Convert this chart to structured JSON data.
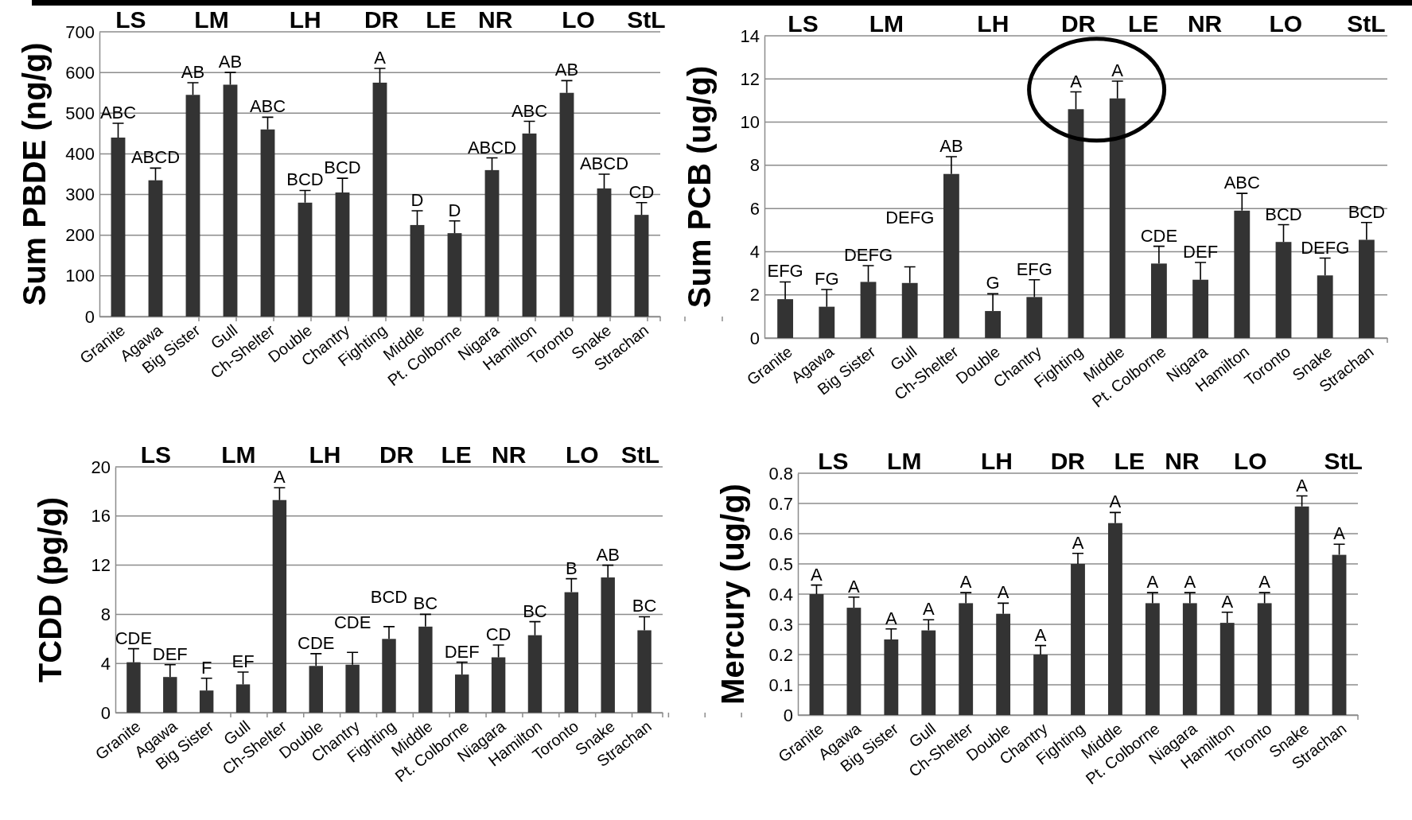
{
  "chart_data": [
    {
      "type": "bar",
      "ylabel": "Sum PBDE (ng/g)",
      "categories": [
        "Granite",
        "Agawa",
        "Big Sister",
        "Gull",
        "Ch-Shelter",
        "Double",
        "Chantry",
        "Fighting",
        "Middle",
        "Pt. Colborne",
        "Nigara",
        "Hamilton",
        "Toronto",
        "Snake",
        "Strachan"
      ],
      "values": [
        440,
        335,
        545,
        570,
        460,
        280,
        305,
        575,
        225,
        205,
        360,
        450,
        550,
        315,
        250
      ],
      "errors": [
        [
          440,
          475
        ],
        [
          335,
          365
        ],
        [
          545,
          575
        ],
        [
          570,
          600
        ],
        [
          460,
          490
        ],
        [
          280,
          310
        ],
        [
          305,
          340
        ],
        [
          575,
          610
        ],
        [
          225,
          260
        ],
        [
          205,
          235
        ],
        [
          360,
          390
        ],
        [
          450,
          480
        ],
        [
          550,
          580
        ],
        [
          315,
          350
        ],
        [
          250,
          280
        ]
      ],
      "color": "#333333",
      "ylim": [
        0,
        700
      ],
      "yticks": [
        0,
        100,
        200,
        300,
        400,
        500,
        600,
        700
      ],
      "grid": "y",
      "annotations": [
        {
          "text": "ABC",
          "x": "Granite",
          "y": 475
        },
        {
          "text": "ABCD",
          "x": "Agawa",
          "y": 365
        },
        {
          "text": "AB",
          "x": "Big Sister",
          "y": 575
        },
        {
          "text": "AB",
          "x": "Gull",
          "y": 600
        },
        {
          "text": "ABC",
          "x": "Ch-Shelter",
          "y": 490
        },
        {
          "text": "BCD",
          "x": "Double",
          "y": 310
        },
        {
          "text": "BCD",
          "x": "Chantry",
          "y": 340
        },
        {
          "text": "A",
          "x": "Fighting",
          "y": 610
        },
        {
          "text": "D",
          "x": "Middle",
          "y": 260
        },
        {
          "text": "D",
          "x": "Pt. Colborne",
          "y": 235
        },
        {
          "text": "ABCD",
          "x": "Nigara",
          "y": 390
        },
        {
          "text": "ABC",
          "x": "Hamilton",
          "y": 480
        },
        {
          "text": "AB",
          "x": "Toronto",
          "y": 580
        },
        {
          "text": "ABCD",
          "x": "Snake",
          "y": 350
        },
        {
          "text": "CD",
          "x": "Strachan",
          "y": 280
        },
        "LS",
        "LM",
        "LH",
        "DR",
        "LE",
        "NR",
        "LO",
        "StL"
      ]
    },
    {
      "type": "bar",
      "ylabel": "Sum PCB (ug/g)",
      "categories": [
        "Granite",
        "Agawa",
        "Big Sister",
        "Gull",
        "Ch-Shelter",
        "Double",
        "Chantry",
        "Fighting",
        "Middle",
        "Pt. Colborne",
        "Nigara",
        "Hamilton",
        "Toronto",
        "Snake",
        "Strachan"
      ],
      "values": [
        1.8,
        1.45,
        2.6,
        2.55,
        7.6,
        1.25,
        1.9,
        10.6,
        11.1,
        3.45,
        2.7,
        5.9,
        4.45,
        2.9,
        4.55
      ],
      "errors": [
        [
          1.8,
          2.6
        ],
        [
          1.45,
          2.25
        ],
        [
          2.6,
          3.35
        ],
        [
          2.55,
          3.3
        ],
        [
          7.6,
          8.4
        ],
        [
          1.25,
          2.05
        ],
        [
          1.9,
          2.7
        ],
        [
          10.6,
          11.4
        ],
        [
          11.1,
          11.9
        ],
        [
          3.45,
          4.25
        ],
        [
          2.7,
          3.5
        ],
        [
          5.9,
          6.7
        ],
        [
          4.45,
          5.25
        ],
        [
          2.9,
          3.7
        ],
        [
          4.55,
          5.35
        ]
      ],
      "color": "#333333",
      "ylim": [
        0,
        14
      ],
      "yticks": [
        0,
        2,
        4,
        6,
        8,
        10,
        12,
        14
      ],
      "grid": "y",
      "annotations": [
        {
          "text": "EFG",
          "x": "Granite",
          "y": 2.6
        },
        {
          "text": "FG",
          "x": "Agawa",
          "y": 2.25
        },
        {
          "text": "DEFG",
          "x": "Big Sister",
          "y": 3.35
        },
        {
          "text": "DEFG",
          "x": "Gull",
          "y": 3.3
        },
        {
          "text": "AB",
          "x": "Ch-Shelter",
          "y": 8.4
        },
        {
          "text": "G",
          "x": "Double",
          "y": 2.05
        },
        {
          "text": "EFG",
          "x": "Chantry",
          "y": 2.7
        },
        {
          "text": "A",
          "x": "Fighting",
          "y": 11.4
        },
        {
          "text": "A",
          "x": "Middle",
          "y": 11.9
        },
        {
          "text": "CDE",
          "x": "Pt. Colborne",
          "y": 4.25
        },
        {
          "text": "DEF",
          "x": "Nigara",
          "y": 3.5
        },
        {
          "text": "ABC",
          "x": "Hamilton",
          "y": 6.7
        },
        {
          "text": "BCD",
          "x": "Toronto",
          "y": 5.25
        },
        {
          "text": "DEFG",
          "x": "Snake",
          "y": 3.7
        },
        {
          "text": "BCD",
          "x": "Strachan",
          "y": 5.35
        },
        "LS",
        "LM",
        "LH",
        "DR",
        "LE",
        "NR",
        "LO",
        "StL"
      ]
    },
    {
      "type": "bar",
      "ylabel": "TCDD (pg/g)",
      "categories": [
        "Granite",
        "Agawa",
        "Big Sister",
        "Gull",
        "Ch-Shelter",
        "Double",
        "Chantry",
        "Fighting",
        "Middle",
        "Pt. Colborne",
        "Niagara",
        "Hamilton",
        "Toronto",
        "Snake",
        "Strachan"
      ],
      "values": [
        4.1,
        2.9,
        1.8,
        2.3,
        17.3,
        3.8,
        3.9,
        6.0,
        7.0,
        3.1,
        4.5,
        6.3,
        9.8,
        11.0,
        6.7
      ],
      "errors": [
        [
          4.1,
          5.2
        ],
        [
          2.9,
          3.9
        ],
        [
          1.8,
          2.8
        ],
        [
          2.3,
          3.3
        ],
        [
          17.3,
          18.3
        ],
        [
          3.8,
          4.8
        ],
        [
          3.9,
          4.9
        ],
        [
          6.0,
          7.0
        ],
        [
          7.0,
          8.0
        ],
        [
          3.1,
          4.1
        ],
        [
          4.5,
          5.5
        ],
        [
          6.3,
          7.4
        ],
        [
          9.8,
          10.9
        ],
        [
          11.0,
          12.0
        ],
        [
          6.7,
          7.8
        ]
      ],
      "color": "#333333",
      "ylim": [
        0,
        20
      ],
      "yticks": [
        0,
        4,
        8,
        12,
        16,
        20
      ],
      "grid": "y",
      "annotations": [
        {
          "text": "CDE",
          "x": "Granite",
          "y": 5.2
        },
        {
          "text": "DEF",
          "x": "Agawa",
          "y": 3.9
        },
        {
          "text": "F",
          "x": "Big Sister",
          "y": 2.8
        },
        {
          "text": "EF",
          "x": "Gull",
          "y": 3.3
        },
        {
          "text": "A",
          "x": "Ch-Shelter",
          "y": 18.3
        },
        {
          "text": "CDE",
          "x": "Double",
          "y": 4.8
        },
        {
          "text": "CDE",
          "x": "Chantry",
          "y": 4.9
        },
        {
          "text": "BCD",
          "x": "Fighting",
          "y": 7.0
        },
        {
          "text": "BC",
          "x": "Middle",
          "y": 8.0
        },
        {
          "text": "DEF",
          "x": "Pt. Colborne",
          "y": 4.1
        },
        {
          "text": "CD",
          "x": "Niagara",
          "y": 5.5
        },
        {
          "text": "BC",
          "x": "Hamilton",
          "y": 7.4
        },
        {
          "text": "B",
          "x": "Toronto",
          "y": 10.9
        },
        {
          "text": "AB",
          "x": "Snake",
          "y": 12.0
        },
        {
          "text": "BC",
          "x": "Strachan",
          "y": 7.8
        },
        "LS",
        "LM",
        "LH",
        "DR",
        "LE",
        "NR",
        "LO",
        "StL"
      ]
    },
    {
      "type": "bar",
      "ylabel": "Mercury (ug/g)",
      "categories": [
        "Granite",
        "Agawa",
        "Big Sister",
        "Gull",
        "Ch-Shelter",
        "Double",
        "Chantry",
        "Fighting",
        "Middle",
        "Pt. Colborne",
        "Niagara",
        "Hamilton",
        "Toronto",
        "Snake",
        "Strachan"
      ],
      "values": [
        0.4,
        0.355,
        0.25,
        0.28,
        0.37,
        0.335,
        0.2,
        0.5,
        0.635,
        0.37,
        0.37,
        0.305,
        0.37,
        0.69,
        0.53
      ],
      "errors": [
        [
          0.4,
          0.43
        ],
        [
          0.355,
          0.39
        ],
        [
          0.25,
          0.285
        ],
        [
          0.28,
          0.315
        ],
        [
          0.37,
          0.405
        ],
        [
          0.335,
          0.37
        ],
        [
          0.2,
          0.23
        ],
        [
          0.5,
          0.535
        ],
        [
          0.635,
          0.67
        ],
        [
          0.37,
          0.405
        ],
        [
          0.37,
          0.405
        ],
        [
          0.305,
          0.34
        ],
        [
          0.37,
          0.405
        ],
        [
          0.69,
          0.725
        ],
        [
          0.53,
          0.565
        ]
      ],
      "color": "#333333",
      "ylim": [
        0,
        0.8
      ],
      "yticks": [
        0,
        0.1,
        0.2,
        0.3,
        0.4,
        0.5,
        0.6,
        0.7,
        0.8
      ],
      "grid": "y",
      "annotations": [
        {
          "text": "A",
          "x": "Granite",
          "y": 0.43
        },
        {
          "text": "A",
          "x": "Agawa",
          "y": 0.39
        },
        {
          "text": "A",
          "x": "Big Sister",
          "y": 0.285
        },
        {
          "text": "A",
          "x": "Gull",
          "y": 0.315
        },
        {
          "text": "A",
          "x": "Ch-Shelter",
          "y": 0.405
        },
        {
          "text": "A",
          "x": "Double",
          "y": 0.37
        },
        {
          "text": "A",
          "x": "Chantry",
          "y": 0.23
        },
        {
          "text": "A",
          "x": "Fighting",
          "y": 0.535
        },
        {
          "text": "A",
          "x": "Middle",
          "y": 0.67
        },
        {
          "text": "A",
          "x": "Pt. Colborne",
          "y": 0.405
        },
        {
          "text": "A",
          "x": "Niagara",
          "y": 0.405
        },
        {
          "text": "A",
          "x": "Hamilton",
          "y": 0.34
        },
        {
          "text": "A",
          "x": "Toronto",
          "y": 0.405
        },
        {
          "text": "A",
          "x": "Snake",
          "y": 0.725
        },
        {
          "text": "A",
          "x": "Strachan",
          "y": 0.565
        },
        "LS",
        "LM",
        "LH",
        "DR",
        "LE",
        "NR",
        "LO",
        "StL"
      ]
    }
  ]
}
